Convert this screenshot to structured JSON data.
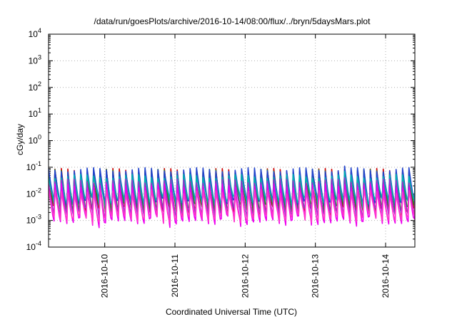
{
  "chart_data": {
    "type": "line",
    "title": "/data/run/goesPlots/archive/2016-10-14/08:00/flux/../bryn/5daysMars.plot",
    "xlabel": "Coordinated Universal Time (UTC)",
    "ylabel": "cGy/day",
    "yscale": "log",
    "ylim": [
      0.0001,
      10000
    ],
    "xlim": [
      "2016-10-09T04:48",
      "2016-10-14T10:00"
    ],
    "y_ticks": [
      {
        "base": "10",
        "exp": "-4"
      },
      {
        "base": "10",
        "exp": "-3"
      },
      {
        "base": "10",
        "exp": "-2"
      },
      {
        "base": "10",
        "exp": "-1"
      },
      {
        "base": "10",
        "exp": "0"
      },
      {
        "base": "10",
        "exp": "1"
      },
      {
        "base": "10",
        "exp": "2"
      },
      {
        "base": "10",
        "exp": "3"
      },
      {
        "base": "10",
        "exp": "4"
      }
    ],
    "x_ticks": [
      "2016-10-10",
      "2016-10-11",
      "2016-10-12",
      "2016-10-13",
      "2016-10-14"
    ],
    "grid": true,
    "legend": "none",
    "sawtooth_period_hours": 2.2,
    "series": [
      {
        "color": "#cc0000",
        "peak": 0.075,
        "trough": 0.0022
      },
      {
        "color": "#228b22",
        "peak": 0.07,
        "trough": 0.0028
      },
      {
        "color": "#2244cc",
        "peak": 0.08,
        "trough": 0.0045
      },
      {
        "color": "#00b0b0",
        "peak": 0.045,
        "trough": 0.005
      },
      {
        "color": "#9933cc",
        "peak": 0.03,
        "trough": 0.0018
      },
      {
        "color": "#ee00ee",
        "peak": 0.02,
        "trough": 0.0009
      },
      {
        "color": "#ff33cc",
        "peak": 0.012,
        "trough": 0.0012
      }
    ]
  }
}
